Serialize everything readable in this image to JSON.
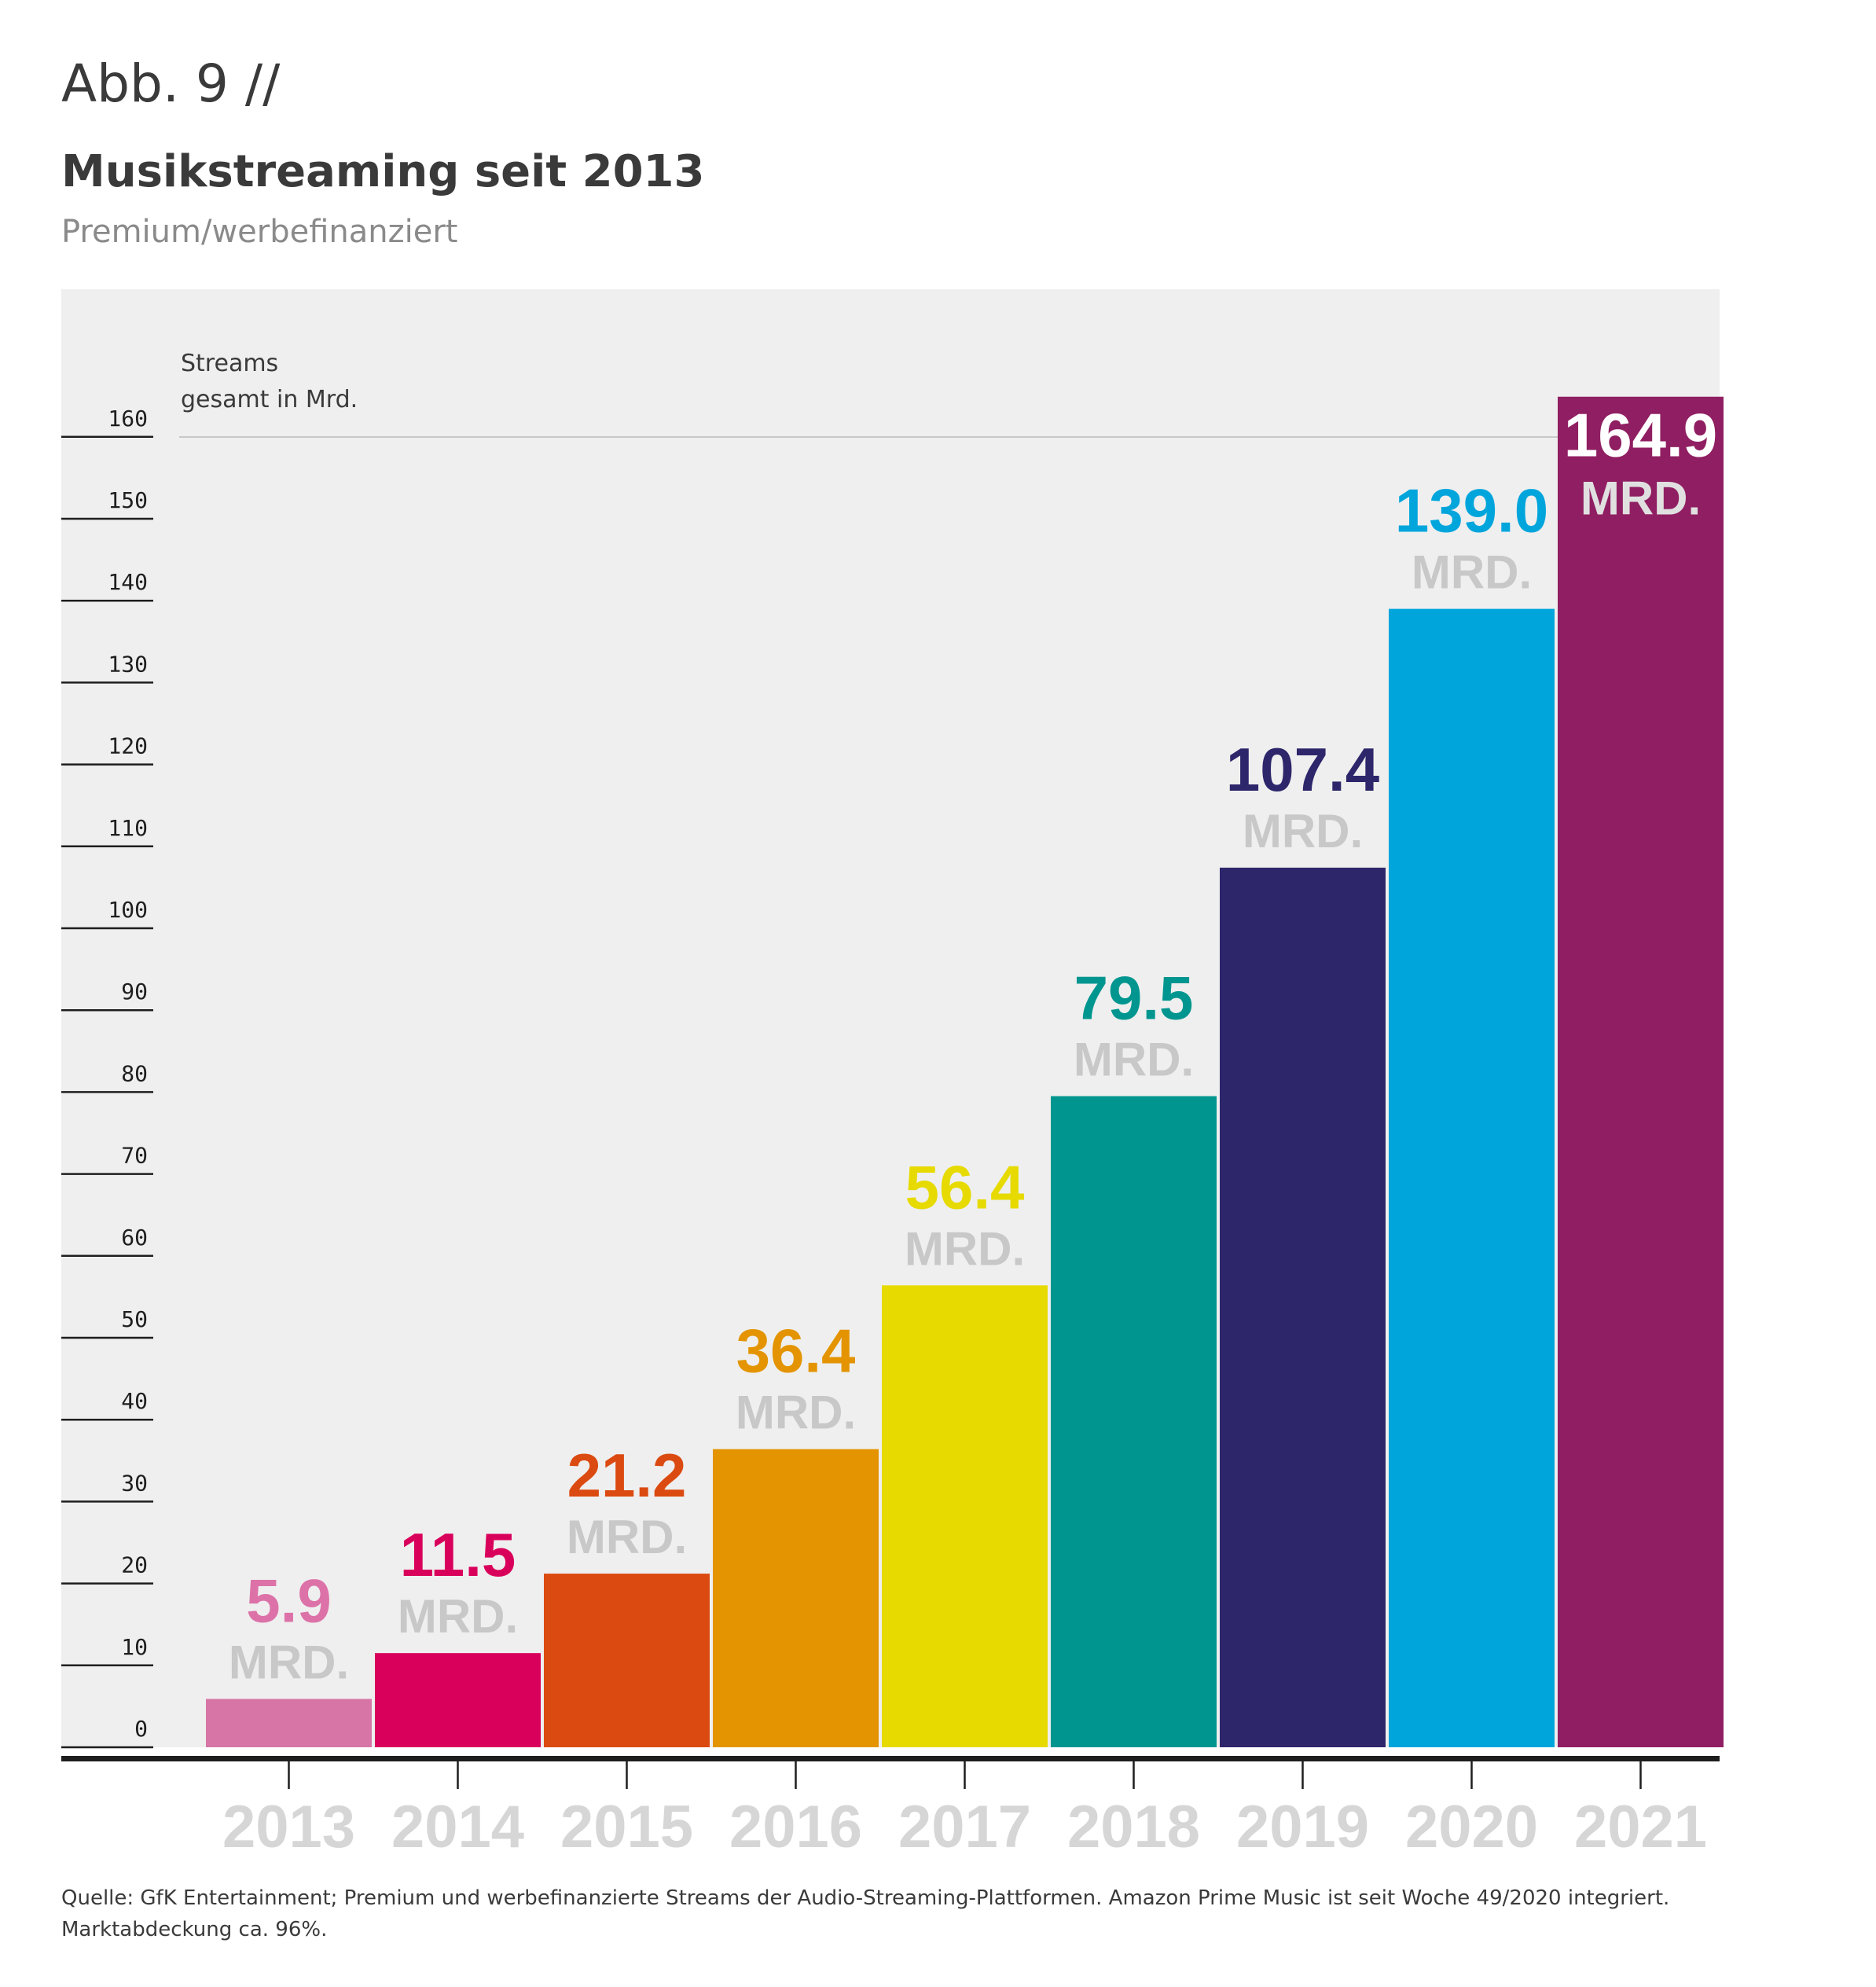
{
  "header": {
    "figure_label": "Abb. 9 //",
    "title": "Musikstreaming seit 2013",
    "subtitle": "Premium/werbefinanziert"
  },
  "footer": {
    "source_line1": "Quelle: GfK Entertainment; Premium und werbefinanzierte Streams der Audio-Streaming-Plattformen. Amazon Prime Music ist seit Woche 49/2020 integriert.",
    "source_line2": "Marktabdeckung ca. 96%."
  },
  "chart_data": {
    "type": "bar",
    "ylabel": "Streams gesamt in Mrd.",
    "ylabel_line1": "Streams",
    "ylabel_line2": "gesamt in Mrd.",
    "ylim": [
      0,
      160
    ],
    "yticks": [
      0,
      10,
      20,
      30,
      40,
      50,
      60,
      70,
      80,
      90,
      100,
      110,
      120,
      130,
      140,
      150,
      160
    ],
    "unit_label": "MRD.",
    "categories": [
      "2013",
      "2014",
      "2015",
      "2016",
      "2017",
      "2018",
      "2019",
      "2020",
      "2021"
    ],
    "values": [
      5.9,
      11.5,
      21.2,
      36.4,
      56.4,
      79.5,
      107.4,
      139.0,
      164.9
    ],
    "value_labels": [
      "5.9",
      "11.5",
      "21.2",
      "36.4",
      "56.4",
      "79.5",
      "107.4",
      "139.0",
      "164.9"
    ],
    "bar_colors": [
      "#d675a6",
      "#d9005b",
      "#db4a10",
      "#e39400",
      "#e6da00",
      "#00968f",
      "#2d266b",
      "#00a5dc",
      "#901e62"
    ],
    "label_colors": [
      "#dc72a8",
      "#d9005b",
      "#db4a10",
      "#e39400",
      "#e6da00",
      "#00968f",
      "#2d266b",
      "#00a5dc",
      "#ffffff"
    ],
    "unit_color": "#c8c8c8",
    "last_unit_color": "#e0e0e0",
    "plot_background": "#efefef",
    "grid": false
  }
}
